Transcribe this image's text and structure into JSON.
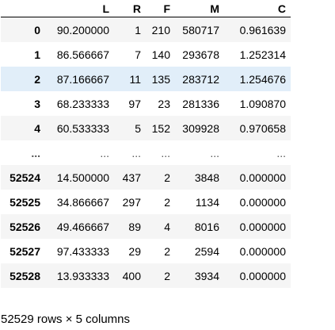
{
  "table": {
    "columns": [
      "",
      "L",
      "R",
      "F",
      "M",
      "C"
    ],
    "rows": [
      {
        "index": "0",
        "L": "90.200000",
        "R": "1",
        "F": "210",
        "M": "580717",
        "C": "0.961639"
      },
      {
        "index": "1",
        "L": "86.566667",
        "R": "7",
        "F": "140",
        "M": "293678",
        "C": "1.252314"
      },
      {
        "index": "2",
        "L": "87.166667",
        "R": "11",
        "F": "135",
        "M": "283712",
        "C": "1.254676"
      },
      {
        "index": "3",
        "L": "68.233333",
        "R": "97",
        "F": "23",
        "M": "281336",
        "C": "1.090870"
      },
      {
        "index": "4",
        "L": "60.533333",
        "R": "5",
        "F": "152",
        "M": "309928",
        "C": "0.970658"
      },
      {
        "index": "...",
        "L": "...",
        "R": "...",
        "F": "...",
        "M": "...",
        "C": "..."
      },
      {
        "index": "52524",
        "L": "14.500000",
        "R": "437",
        "F": "2",
        "M": "3848",
        "C": "0.000000"
      },
      {
        "index": "52525",
        "L": "34.866667",
        "R": "297",
        "F": "2",
        "M": "1134",
        "C": "0.000000"
      },
      {
        "index": "52526",
        "L": "49.466667",
        "R": "89",
        "F": "4",
        "M": "8016",
        "C": "0.000000"
      },
      {
        "index": "52527",
        "L": "97.433333",
        "R": "29",
        "F": "2",
        "M": "2594",
        "C": "0.000000"
      },
      {
        "index": "52528",
        "L": "13.933333",
        "R": "400",
        "F": "2",
        "M": "3934",
        "C": "0.000000"
      }
    ],
    "hovered_row_index": "2"
  },
  "summary": "52529 rows × 5 columns",
  "colors": {
    "row_stripe": "#f5f5f5",
    "row_hover": "#e1eef9",
    "header_border": "#000000"
  }
}
